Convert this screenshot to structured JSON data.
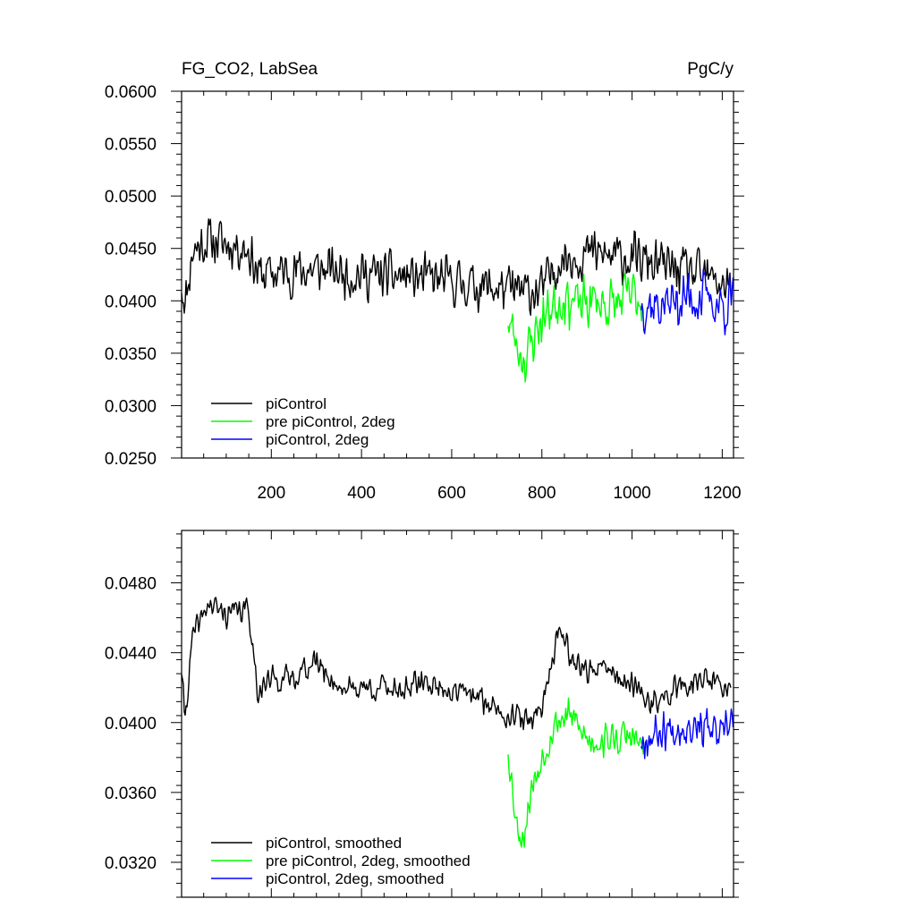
{
  "chart_data": [
    {
      "type": "line",
      "title_left": "FG_CO2, LabSea",
      "title_right": "PgC/y",
      "xlim": [
        1,
        1225
      ],
      "ylim": [
        0.025,
        0.06
      ],
      "x_ticks": [
        200,
        400,
        600,
        800,
        1000,
        1200
      ],
      "x_tick_labels": [
        "200",
        "400",
        "600",
        "800",
        "1000",
        "1200"
      ],
      "y_ticks": [
        0.025,
        0.03,
        0.035,
        0.04,
        0.045,
        0.05,
        0.055,
        0.06
      ],
      "y_tick_labels": [
        "0.0250",
        "0.0300",
        "0.0350",
        "0.0400",
        "0.0450",
        "0.0500",
        "0.0550",
        "0.0600"
      ],
      "legend_position": "bottom-left",
      "series": [
        {
          "name": "piControl",
          "color": "#000000",
          "x_range": [
            1,
            1220
          ],
          "noise": 0.0028,
          "seed": 11,
          "anchors": [
            [
              1,
              0.0415
            ],
            [
              10,
              0.04
            ],
            [
              25,
              0.0448
            ],
            [
              60,
              0.0458
            ],
            [
              100,
              0.0455
            ],
            [
              150,
              0.045
            ],
            [
              170,
              0.0425
            ],
            [
              300,
              0.043
            ],
            [
              400,
              0.0425
            ],
            [
              500,
              0.0423
            ],
            [
              600,
              0.0418
            ],
            [
              700,
              0.0412
            ],
            [
              760,
              0.0408
            ],
            [
              800,
              0.041
            ],
            [
              840,
              0.044
            ],
            [
              900,
              0.0445
            ],
            [
              1000,
              0.044
            ],
            [
              1100,
              0.043
            ],
            [
              1220,
              0.0415
            ]
          ]
        },
        {
          "name": "pre piControl, 2deg",
          "color": "#00ff00",
          "x_range": [
            725,
            1025
          ],
          "noise": 0.0032,
          "seed": 23,
          "anchors": [
            [
              725,
              0.0385
            ],
            [
              745,
              0.0355
            ],
            [
              765,
              0.0345
            ],
            [
              790,
              0.0375
            ],
            [
              820,
              0.0395
            ],
            [
              850,
              0.0405
            ],
            [
              880,
              0.0395
            ],
            [
              920,
              0.04
            ],
            [
              960,
              0.0395
            ],
            [
              1000,
              0.0405
            ],
            [
              1025,
              0.04
            ]
          ]
        },
        {
          "name": "piControl, 2deg",
          "color": "#0000ff",
          "x_range": [
            1020,
            1225
          ],
          "noise": 0.0033,
          "seed": 37,
          "anchors": [
            [
              1020,
              0.04
            ],
            [
              1060,
              0.0395
            ],
            [
              1100,
              0.04
            ],
            [
              1150,
              0.0405
            ],
            [
              1200,
              0.0395
            ],
            [
              1225,
              0.04
            ]
          ]
        }
      ]
    },
    {
      "type": "line",
      "xlim": [
        1,
        1225
      ],
      "ylim": [
        0.03,
        0.051
      ],
      "x_ticks": [
        200,
        400,
        600,
        800,
        1000,
        1200
      ],
      "y_ticks": [
        0.032,
        0.036,
        0.04,
        0.044,
        0.048
      ],
      "y_tick_labels": [
        "0.0320",
        "0.0360",
        "0.0400",
        "0.0440",
        "0.0480"
      ],
      "legend_position": "bottom-left",
      "series": [
        {
          "name": "piControl, smoothed",
          "color": "#000000",
          "x_range": [
            1,
            1220
          ],
          "noise": 0.0009,
          "seed": 41,
          "anchors": [
            [
              1,
              0.043
            ],
            [
              8,
              0.0402
            ],
            [
              25,
              0.0448
            ],
            [
              60,
              0.0468
            ],
            [
              100,
              0.0462
            ],
            [
              150,
              0.0465
            ],
            [
              170,
              0.0418
            ],
            [
              200,
              0.0425
            ],
            [
              240,
              0.0425
            ],
            [
              300,
              0.0435
            ],
            [
              350,
              0.042
            ],
            [
              400,
              0.042
            ],
            [
              500,
              0.042
            ],
            [
              550,
              0.0423
            ],
            [
              600,
              0.0418
            ],
            [
              650,
              0.0415
            ],
            [
              700,
              0.0408
            ],
            [
              770,
              0.04
            ],
            [
              800,
              0.041
            ],
            [
              840,
              0.0455
            ],
            [
              870,
              0.0435
            ],
            [
              900,
              0.043
            ],
            [
              950,
              0.043
            ],
            [
              1000,
              0.042
            ],
            [
              1050,
              0.041
            ],
            [
              1100,
              0.042
            ],
            [
              1150,
              0.0425
            ],
            [
              1220,
              0.042
            ]
          ]
        },
        {
          "name": "pre piControl, 2deg, smoothed",
          "color": "#00ff00",
          "x_range": [
            725,
            1025
          ],
          "noise": 0.0012,
          "seed": 53,
          "anchors": [
            [
              725,
              0.0385
            ],
            [
              745,
              0.034
            ],
            [
              760,
              0.0335
            ],
            [
              775,
              0.036
            ],
            [
              800,
              0.038
            ],
            [
              830,
              0.04
            ],
            [
              860,
              0.0405
            ],
            [
              900,
              0.039
            ],
            [
              950,
              0.039
            ],
            [
              1000,
              0.0392
            ],
            [
              1025,
              0.0385
            ]
          ]
        },
        {
          "name": "piControl, 2deg, smoothed",
          "color": "#0000ff",
          "x_range": [
            1020,
            1225
          ],
          "noise": 0.0014,
          "seed": 67,
          "anchors": [
            [
              1020,
              0.039
            ],
            [
              1060,
              0.0395
            ],
            [
              1100,
              0.0398
            ],
            [
              1150,
              0.04
            ],
            [
              1200,
              0.039
            ],
            [
              1225,
              0.0405
            ]
          ]
        }
      ]
    }
  ]
}
